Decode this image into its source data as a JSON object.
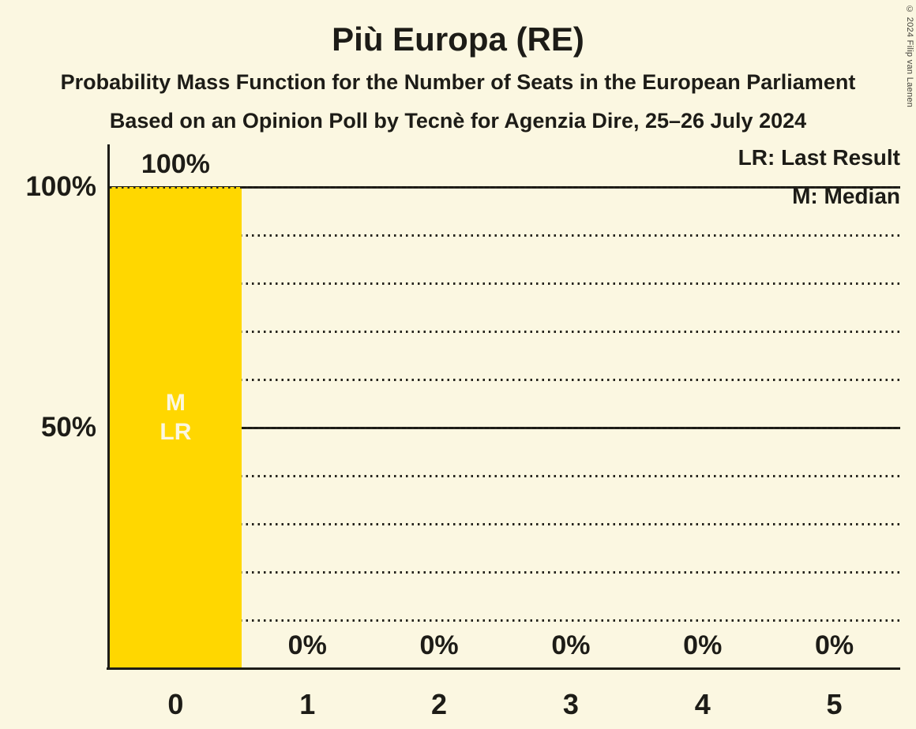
{
  "page": {
    "background_color": "#FBF7E1",
    "text_color": "#1D1C17",
    "copyright": "© 2024 Filip van Laenen"
  },
  "header": {
    "title": "Più Europa (RE)",
    "subtitle": "Probability Mass Function for the Number of Seats in the European Parliament",
    "source_line": "Based on an Opinion Poll by Tecnè for Agenzia Dire, 25–26 July 2024"
  },
  "legend": {
    "lr": "LR: Last Result",
    "m": "M: Median"
  },
  "chart_data": {
    "type": "bar",
    "title": "Più Europa (RE)",
    "subtitle": "Probability Mass Function for the Number of Seats in the European Parliament",
    "source_line": "Based on an Opinion Poll by Tecnè for Agenzia Dire, 25–26 July 2024",
    "categories": [
      "0",
      "1",
      "2",
      "3",
      "4",
      "5"
    ],
    "values": [
      100,
      0,
      0,
      0,
      0,
      0
    ],
    "value_labels": [
      "100%",
      "0%",
      "0%",
      "0%",
      "0%",
      "0%"
    ],
    "y_axis_ticks": [
      {
        "label": "100%",
        "value": 100
      },
      {
        "label": "50%",
        "value": 50
      }
    ],
    "ylim": [
      0,
      100
    ],
    "grid": {
      "minor_step": 10,
      "minor_style": "dotted",
      "major_values": [
        50,
        100
      ],
      "major_style": "solid"
    },
    "legend": [
      "LR: Last Result",
      "M: Median"
    ],
    "legend_position": "top-right",
    "bar_color": "#FFD700",
    "bar_label_color": "#FBF7E1",
    "bar_annotations": [
      {
        "category": "0",
        "lines": [
          "M",
          "LR"
        ]
      }
    ],
    "annotation_meaning": {
      "M": "Median",
      "LR": "Last Result"
    },
    "median_seats": 0,
    "last_result_seats": 0
  }
}
